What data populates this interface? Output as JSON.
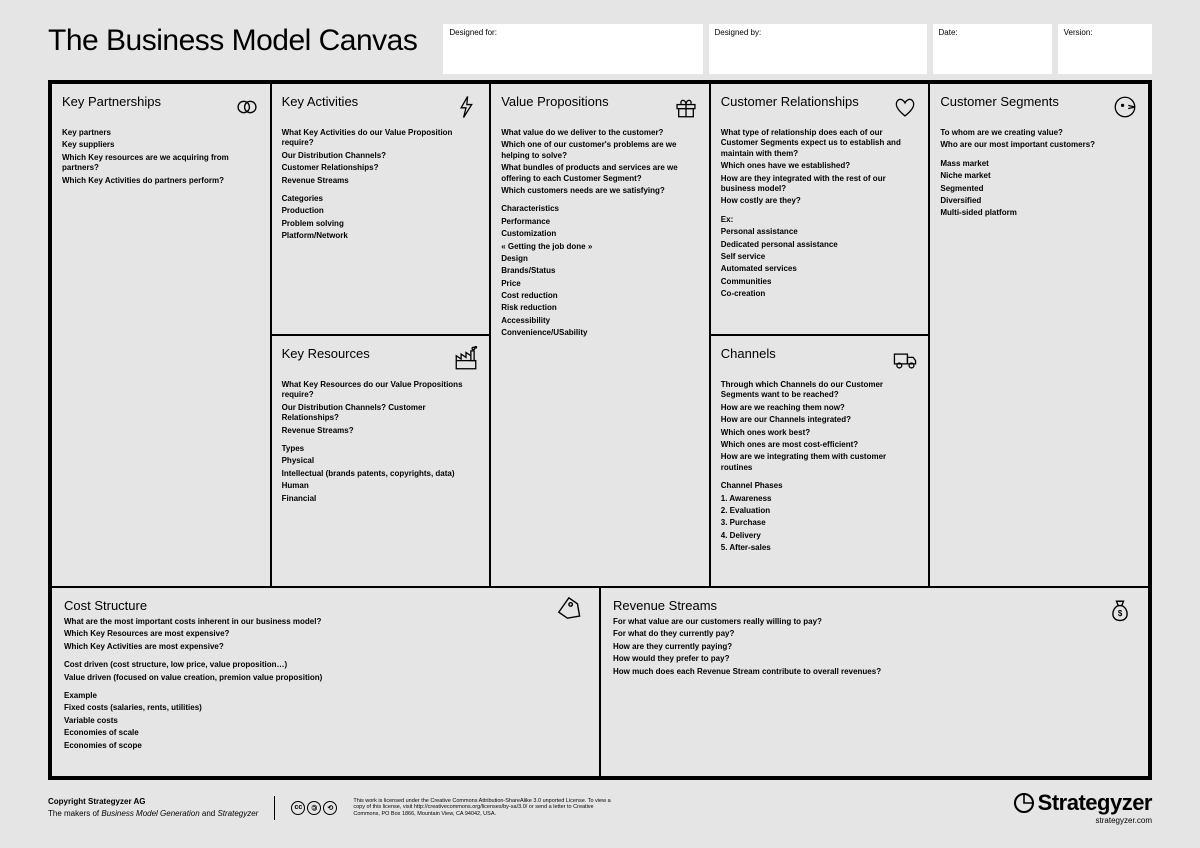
{
  "title": "The Business Model Canvas",
  "meta": {
    "designed_for": "Designed for:",
    "designed_by": "Designed by:",
    "date": "Date:",
    "version": "Version:"
  },
  "cells": {
    "kp": {
      "title": "Key Partnerships",
      "lines": [
        "Key partners",
        "Key suppliers",
        "Which Key resources are we acquiring from partners?",
        "Which Key Activities do partners perform?"
      ]
    },
    "ka": {
      "title": "Key Activities",
      "q": [
        "What Key Activities do our Value Proposition require?",
        "Our Distribution Channels?",
        "Customer Relationships?",
        "Revenue Streams"
      ],
      "cats": [
        "Categories",
        "Production",
        "Problem solving",
        "Platform/Network"
      ]
    },
    "kr": {
      "title": "Key Resources",
      "q": [
        "What Key Resources do our Value Propositions require?",
        "Our Distribution Channels? Customer Relationships?",
        "Revenue Streams?"
      ],
      "cats": [
        "Types",
        "Physical",
        "Intellectual (brands patents, copyrights, data)",
        "Human",
        "Financial"
      ]
    },
    "vp": {
      "title": "Value Propositions",
      "q": [
        "What value do we deliver to the customer?",
        "Which one of our customer's problems are we helping to solve?",
        "What bundles of products and services are we offering to each Customer Segment?",
        "Which customers needs are we satisfying?"
      ],
      "cats": [
        "Characteristics",
        "Performance",
        "Customization",
        "« Getting the job done »",
        "Design",
        "Brands/Status",
        "Price",
        "Cost reduction",
        "Risk reduction",
        "Accessibility",
        "Convenience/USability"
      ]
    },
    "cr": {
      "title": "Customer Relationships",
      "q": [
        "What type of relationship does each of our Customer Segments expect us to establish and maintain with them?",
        "Which ones have we established?",
        "How are they integrated with the rest of our business model?",
        "How costly are they?"
      ],
      "cats": [
        "Ex:",
        "Personal assistance",
        "Dedicated personal assistance",
        "Self service",
        "Automated services",
        "Communities",
        "Co-creation"
      ]
    },
    "ch": {
      "title": "Channels",
      "q": [
        "Through which Channels do our Customer Segments want to be reached?",
        "How are we reaching them now?",
        "How are our Channels integrated?",
        "Which ones work best?",
        "Which ones are most cost-efficient?",
        "How are we integrating them with customer routines"
      ],
      "cats": [
        "Channel Phases",
        "1. Awareness",
        "2. Evaluation",
        "3. Purchase",
        "4. Delivery",
        "5. After-sales"
      ]
    },
    "cs": {
      "title": "Customer Segments",
      "q": [
        "To whom are we creating value?",
        "Who are our most important customers?"
      ],
      "cats": [
        "Mass market",
        "Niche market",
        "Segmented",
        "Diversified",
        "Multi-sided platform"
      ]
    },
    "cost": {
      "title": "Cost Structure",
      "q": [
        "What are the most important costs inherent in our business model?",
        "Which Key Resources are most expensive?",
        "Which Key Activities are most expensive?"
      ],
      "g2": [
        "Cost driven (cost structure, low price, value proposition…)",
        "Value driven (focused on value creation, premion value proposition)"
      ],
      "g3": [
        "Example",
        "Fixed costs (salaries, rents, utilities)",
        "Variable costs",
        "Economies of scale",
        "Economies of scope"
      ]
    },
    "rev": {
      "title": "Revenue Streams",
      "q": [
        "For what value are our customers really willing to pay?",
        "For what do they currently pay?",
        "How are they currently paying?",
        "How would they prefer to pay?",
        "How much does each Revenue Stream contribute to overall revenues?"
      ]
    }
  },
  "footer": {
    "copyright1": "Copyright Strategyzer AG",
    "copyright2a": "The makers of ",
    "copyright2b": "Business Model Generation",
    "copyright2c": " and ",
    "copyright2d": "Strategyzer",
    "license": "This work is licensed under the Creative Commons Attribution-ShareAlike 3.0 unported License. To view a copy of this license, visit http://creativecommons.org/licenses/by-sa/3.0/ or send a letter to Creative Commons, PO Box 1866, Mountain View, CA 94042, USA.",
    "brand": "Strategyzer",
    "url": "strategyzer.com"
  }
}
